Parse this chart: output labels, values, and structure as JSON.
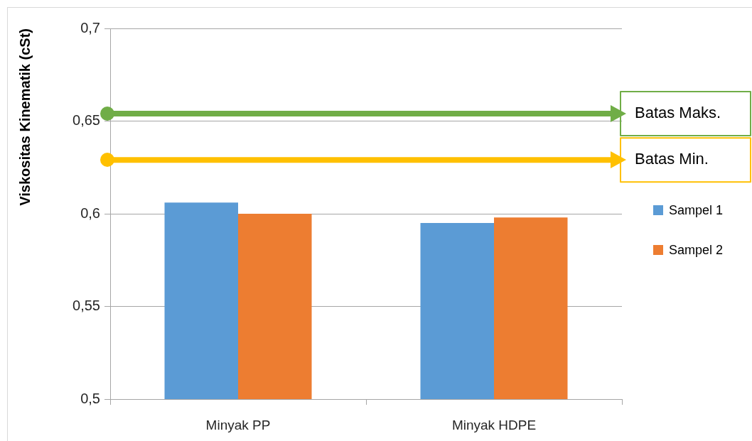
{
  "chart_data": {
    "type": "bar",
    "ylabel": "Viskositas Kinematik (cSt)",
    "categories": [
      "Minyak PP",
      "Minyak HDPE"
    ],
    "series": [
      {
        "name": "Sampel 1",
        "color": "#5b9bd5",
        "values": [
          0.606,
          0.595
        ]
      },
      {
        "name": "Sampel 2",
        "color": "#ed7d31",
        "values": [
          0.6,
          0.598
        ]
      }
    ],
    "ylim": [
      0.5,
      0.7
    ],
    "yticks": [
      {
        "value": 0.5,
        "label": "0,5"
      },
      {
        "value": 0.55,
        "label": "0,55"
      },
      {
        "value": 0.6,
        "label": "0,6"
      },
      {
        "value": 0.65,
        "label": "0,65"
      },
      {
        "value": 0.7,
        "label": "0,7"
      }
    ],
    "ref_lines": [
      {
        "axis": "y",
        "value": 0.654,
        "label": "Batas Maks.",
        "color": "#70ad47"
      },
      {
        "axis": "y",
        "value": 0.629,
        "label": "Batas Min.",
        "color": "#ffc000"
      }
    ],
    "grid": "y",
    "legend": "right"
  }
}
